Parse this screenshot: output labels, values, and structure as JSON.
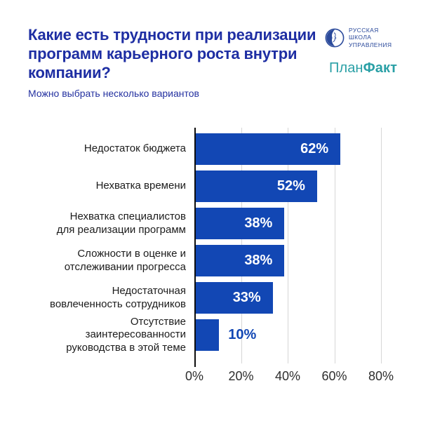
{
  "header": {
    "title": "Какие есть трудности при реализации программ карьерного роста внутри компании?",
    "subtitle": "Можно выбрать несколько вариантов",
    "rshu_logo": {
      "line1": "РУССКАЯ",
      "line2": "ШКОЛА",
      "line3": "УПРАВЛЕНИЯ",
      "color": "#2B4A9B"
    },
    "planfakt_logo": {
      "part_regular": "План",
      "part_bold": "Факт",
      "color": "#2AA0A6"
    }
  },
  "chart_data": {
    "type": "bar",
    "orientation": "horizontal",
    "title": "Какие есть трудности при реализации программ карьерного роста внутри компании?",
    "subtitle": "Можно выбрать несколько вариантов",
    "categories": [
      "Недостаток бюджета",
      "Нехватка времени",
      "Нехватка специалистов\nдля реализации программ",
      "Сложности в оценке и\nотслеживании прогресса",
      "Недостаточная\nвовлеченность сотрудников",
      "Отсутствие\nзаинтересованности\nруководства в этой теме"
    ],
    "values": [
      62,
      52,
      38,
      38,
      33,
      10
    ],
    "value_labels": [
      "62%",
      "52%",
      "38%",
      "38%",
      "33%",
      "10%"
    ],
    "xlim": [
      0,
      80
    ],
    "x_tick_values": [
      0,
      20,
      40,
      60,
      80
    ],
    "x_ticks": [
      "0%",
      "20%",
      "40%",
      "60%",
      "80%"
    ],
    "grid": true,
    "legend": false,
    "bar_color": "#1247B4",
    "label_inside_color": "#FFFFFF",
    "label_outside_color": "#1247B4"
  },
  "colors": {
    "title": "#1E2EA3",
    "category_text": "#1B1B1B",
    "tick_label": "#2E2E2E",
    "gridline": "#D6D6D6",
    "axis": "#0D0D0D",
    "background": "#FFFFFF"
  }
}
